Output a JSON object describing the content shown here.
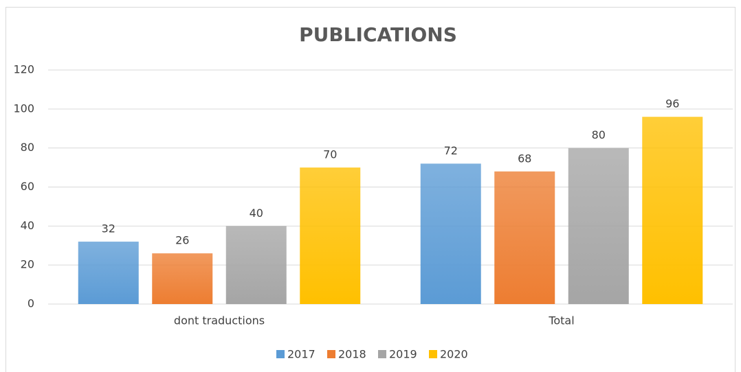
{
  "chart_data": {
    "type": "bar",
    "title": "PUBLICATIONS",
    "categories": [
      "dont traductions",
      "Total"
    ],
    "series": [
      {
        "name": "2017",
        "color": "#5b9bd5",
        "values": [
          32,
          72
        ]
      },
      {
        "name": "2018",
        "color": "#ed7d31",
        "values": [
          26,
          68
        ]
      },
      {
        "name": "2019",
        "color": "#a5a5a5",
        "values": [
          40,
          80
        ]
      },
      {
        "name": "2020",
        "color": "#ffc000",
        "values": [
          70,
          96
        ]
      }
    ],
    "ylim": [
      0,
      120
    ],
    "yticks": [
      0,
      20,
      40,
      60,
      80,
      100,
      120
    ],
    "grid": true,
    "legend": "bottom"
  }
}
